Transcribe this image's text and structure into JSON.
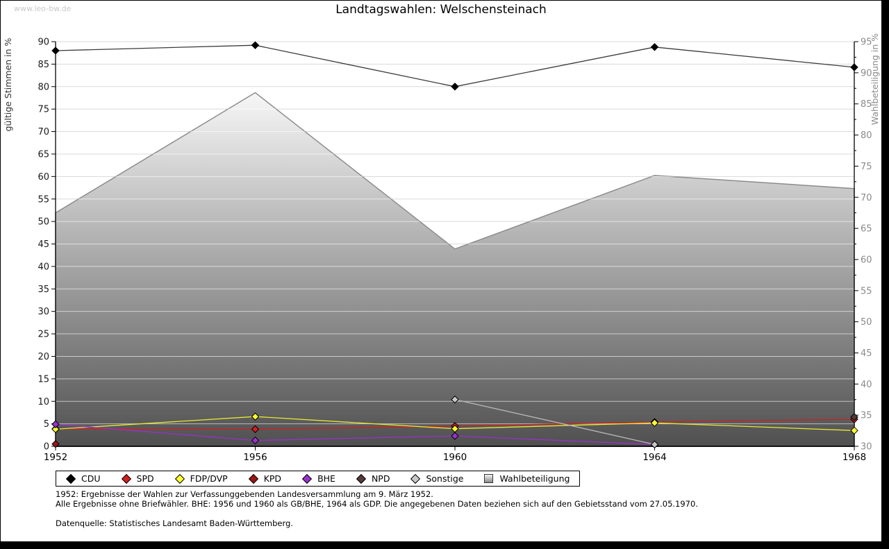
{
  "watermark": "www.leo-bw.de",
  "title": "Landtagswahlen: Welschensteinach",
  "chart_data": {
    "type": "line",
    "x": [
      1952,
      1956,
      1960,
      1964,
      1968
    ],
    "left_axis": {
      "label": "gültige Stimmen in %",
      "min": 0,
      "max": 90,
      "step": 5
    },
    "right_axis": {
      "label": "Wahlbeteiligung in %",
      "min": 30,
      "max": 95,
      "step": 5
    },
    "area_series": {
      "name": "Wahlbeteiligung",
      "axis": "right",
      "values": [
        67.5,
        86.8,
        61.7,
        73.5,
        71.4
      ],
      "stroke": "#8c8c8c",
      "fill_top": "#fcfcfc",
      "fill_bottom": "#4d4d4d"
    },
    "series": [
      {
        "name": "CDU",
        "color": "#000000",
        "line": "#3a3a3a",
        "values": [
          88.0,
          89.2,
          80.0,
          88.8,
          84.3
        ]
      },
      {
        "name": "SPD",
        "color": "#cf2020",
        "line": "#cf2020",
        "values": [
          3.9,
          3.8,
          4.5,
          5.4,
          6.0
        ]
      },
      {
        "name": "FDP/DVP",
        "color": "#ffff33",
        "line": "#e8e832",
        "values": [
          3.8,
          6.6,
          3.9,
          5.2,
          3.5
        ]
      },
      {
        "name": "KPD",
        "color": "#9e1515",
        "line": "#9e1515",
        "values": [
          0.5,
          null,
          null,
          null,
          null
        ]
      },
      {
        "name": "BHE",
        "color": "#9932cc",
        "line": "#9932cc",
        "values": [
          4.9,
          1.3,
          2.3,
          0.4,
          null
        ]
      },
      {
        "name": "NPD",
        "color": "#553a3a",
        "line": "#553a3a",
        "values": [
          null,
          null,
          null,
          null,
          6.5
        ]
      },
      {
        "name": "Sonstige",
        "color": "#c8c8c8",
        "line": "#b8b8b8",
        "values": [
          null,
          null,
          10.4,
          0.4,
          null
        ]
      }
    ],
    "grid": true,
    "legend_position": "bottom"
  },
  "footnotes": [
    "1952: Ergebnisse der Wahlen zur Verfassunggebenden Landesversammlung am 9. März 1952.",
    "Alle Ergebnisse ohne Briefwähler. BHE: 1956 und 1960 als GB/BHE, 1964 als GDP. Die angegebenen Daten beziehen sich auf den Gebietsstand vom 27.05.1970.",
    "Datenquelle: Statistisches Landesamt Baden-Württemberg."
  ]
}
